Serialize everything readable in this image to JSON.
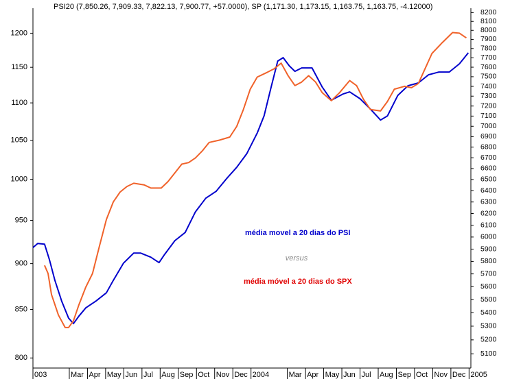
{
  "chart_data": {
    "type": "line",
    "title": "PSI20 (7,850.26, 7,909.33, 7,822.13, 7,900.77, +57.0000), SP (1,171.30, 1,173.15, 1,163.75, 1,163.75, -4.12000)",
    "annotation": "versus",
    "xlim": [
      0,
      24.1
    ],
    "xticks": [
      {
        "value": 0,
        "label": "003"
      },
      {
        "value": 2,
        "label": "Mar"
      },
      {
        "value": 3,
        "label": "Apr"
      },
      {
        "value": 4,
        "label": "May"
      },
      {
        "value": 5,
        "label": "Jun"
      },
      {
        "value": 6,
        "label": "Jul"
      },
      {
        "value": 7,
        "label": "Aug"
      },
      {
        "value": 8,
        "label": "Sep"
      },
      {
        "value": 9,
        "label": "Oct"
      },
      {
        "value": 10,
        "label": "Nov"
      },
      {
        "value": 11,
        "label": "Dec"
      },
      {
        "value": 12,
        "label": "2004"
      },
      {
        "value": 14,
        "label": "Mar"
      },
      {
        "value": 15,
        "label": "Apr"
      },
      {
        "value": 16,
        "label": "May"
      },
      {
        "value": 17,
        "label": "Jun"
      },
      {
        "value": 18,
        "label": "Jul"
      },
      {
        "value": 19,
        "label": "Aug"
      },
      {
        "value": 20,
        "label": "Sep"
      },
      {
        "value": 21,
        "label": "Oct"
      },
      {
        "value": 22,
        "label": "Nov"
      },
      {
        "value": 23,
        "label": "Dec"
      },
      {
        "value": 24,
        "label": "2005"
      }
    ],
    "log_scale": true,
    "ylim": [
      790,
      1238
    ],
    "yticks": [
      800,
      850,
      900,
      950,
      1000,
      1050,
      1100,
      1150,
      1200
    ],
    "y2lim": [
      5000,
      8250
    ],
    "y2ticks": [
      5100,
      5200,
      5300,
      5400,
      5500,
      5600,
      5700,
      5800,
      5900,
      6000,
      6100,
      6200,
      6300,
      6400,
      6500,
      6600,
      6700,
      6800,
      6900,
      7000,
      7100,
      7200,
      7300,
      7400,
      7500,
      7600,
      7700,
      7800,
      7900,
      8000,
      8100,
      8200
    ],
    "series": [
      {
        "name": "média movel a 20 dias do PSI",
        "color": "#0000cc",
        "axis": "y2",
        "x": [
          0,
          0.26,
          0.64,
          0.91,
          1.21,
          1.58,
          1.96,
          2.23,
          2.53,
          2.91,
          3.47,
          4.04,
          4.42,
          4.98,
          5.55,
          5.92,
          6.49,
          6.94,
          7.25,
          7.81,
          8.38,
          8.94,
          9.51,
          10.08,
          10.64,
          11.21,
          11.77,
          12.34,
          12.72,
          13.09,
          13.47,
          13.77,
          14.11,
          14.42,
          14.79,
          15.36,
          15.92,
          16.42,
          17.06,
          17.43,
          18.0,
          18.57,
          19.13,
          19.51,
          20.08,
          20.64,
          21.21,
          21.77,
          22.34,
          22.91,
          23.47,
          23.96
        ],
        "values": [
          5913,
          5947,
          5941,
          5812,
          5648,
          5489,
          5360,
          5319,
          5375,
          5437,
          5489,
          5552,
          5648,
          5785,
          5868,
          5868,
          5834,
          5790,
          5857,
          5970,
          6038,
          6214,
          6333,
          6394,
          6505,
          6611,
          6739,
          6934,
          7102,
          7378,
          7665,
          7702,
          7614,
          7556,
          7592,
          7592,
          7392,
          7259,
          7321,
          7343,
          7274,
          7170,
          7061,
          7102,
          7308,
          7406,
          7435,
          7520,
          7549,
          7549,
          7636,
          7754
        ]
      },
      {
        "name": "média móvel a 20 dias do SPX",
        "color": "#f0622a",
        "x": [
          0.64,
          0.83,
          1.02,
          1.4,
          1.77,
          1.96,
          2.23,
          2.53,
          2.91,
          3.28,
          3.66,
          4.04,
          4.42,
          4.79,
          5.17,
          5.55,
          6.11,
          6.49,
          7.06,
          7.43,
          7.81,
          8.19,
          8.57,
          8.94,
          9.32,
          9.7,
          10.26,
          10.83,
          11.21,
          11.58,
          11.96,
          12.34,
          12.91,
          13.28,
          13.66,
          14.04,
          14.42,
          14.79,
          15.17,
          15.55,
          15.92,
          16.42,
          16.87,
          17.43,
          17.81,
          18.19,
          18.57,
          19.13,
          19.51,
          19.89,
          20.45,
          20.83,
          21.21,
          21.58,
          21.96,
          22.53,
          23.09,
          23.47,
          23.85
        ],
        "values": [
          898,
          889,
          866,
          844,
          831,
          831,
          838,
          855,
          874,
          889,
          920,
          951,
          972,
          984,
          991,
          995,
          993,
          989,
          989,
          997,
          1008,
          1019,
          1021,
          1027,
          1036,
          1047,
          1050,
          1054,
          1068,
          1091,
          1119,
          1136,
          1143,
          1148,
          1156,
          1138,
          1124,
          1129,
          1138,
          1129,
          1114,
          1103,
          1114,
          1131,
          1124,
          1105,
          1091,
          1089,
          1102,
          1119,
          1123,
          1121,
          1127,
          1148,
          1170,
          1186,
          1201,
          1200,
          1193
        ]
      }
    ]
  }
}
